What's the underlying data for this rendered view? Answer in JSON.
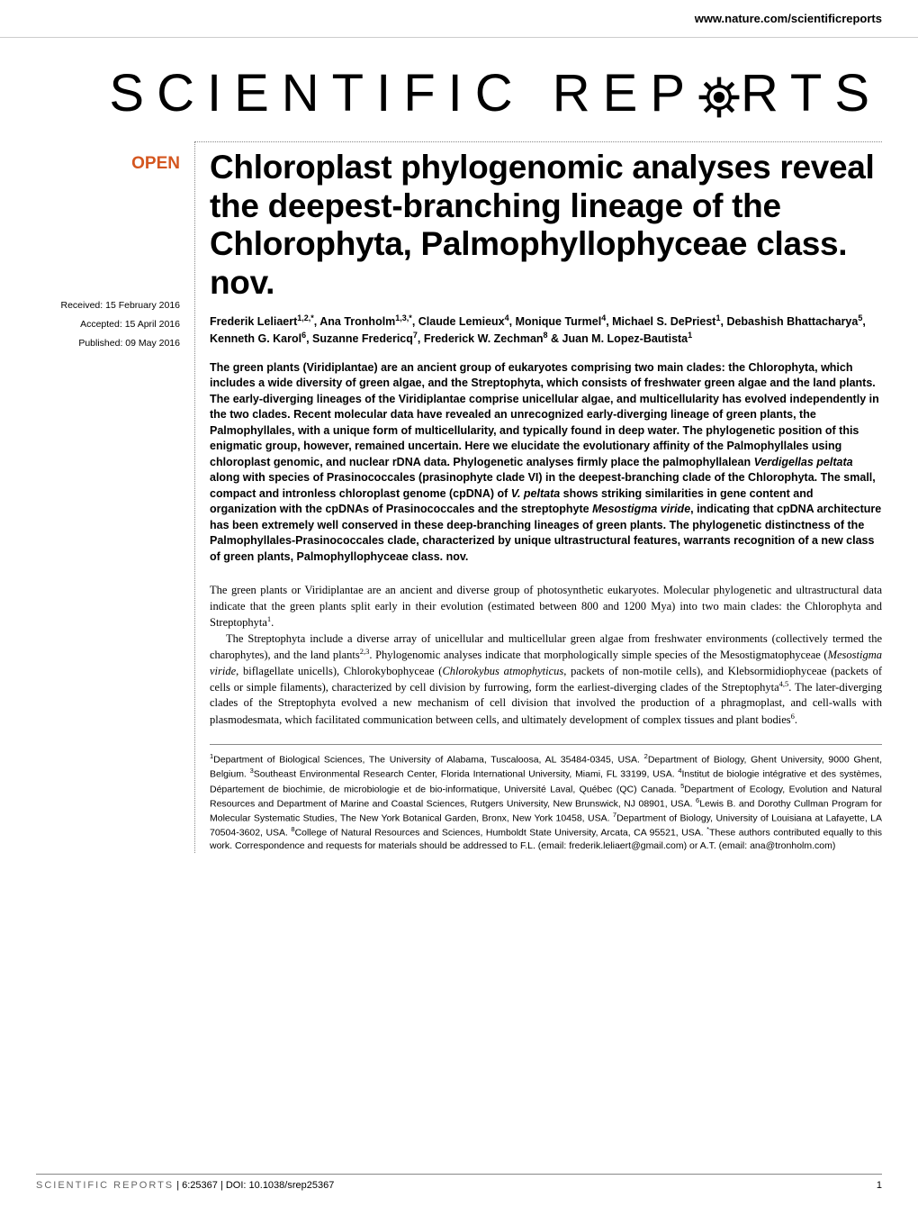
{
  "header": {
    "url": "www.nature.com/scientificreports"
  },
  "logo": {
    "text_before": "SCIENTIFIC",
    "text_after_o": "REP",
    "text_after_gear": "RTS"
  },
  "sidebar": {
    "open_label": "OPEN",
    "received": "Received: 15 February 2016",
    "accepted": "Accepted: 15 April 2016",
    "published": "Published: 09 May 2016"
  },
  "article": {
    "title": "Chloroplast phylogenomic analyses reveal the deepest-branching lineage of the Chlorophyta, Palmophyllophyceae class. nov.",
    "authors_html": "Frederik Leliaert<sup>1,2,*</sup>, Ana Tronholm<sup>1,3,*</sup>, Claude Lemieux<sup>4</sup>, Monique Turmel<sup>4</sup>, Michael S. DePriest<sup>1</sup>, Debashish Bhattacharya<sup>5</sup>, Kenneth G. Karol<sup>6</sup>, Suzanne Fredericq<sup>7</sup>, Frederick W. Zechman<sup>8</sup> & Juan M. Lopez-Bautista<sup>1</sup>",
    "abstract_html": "The green plants (Viridiplantae) are an ancient group of eukaryotes comprising two main clades: the Chlorophyta, which includes a wide diversity of green algae, and the Streptophyta, which consists of freshwater green algae and the land plants. The early-diverging lineages of the Viridiplantae comprise unicellular algae, and multicellularity has evolved independently in the two clades. Recent molecular data have revealed an unrecognized early-diverging lineage of green plants, the Palmophyllales, with a unique form of multicellularity, and typically found in deep water. The phylogenetic position of this enigmatic group, however, remained uncertain. Here we elucidate the evolutionary affinity of the Palmophyllales using chloroplast genomic, and nuclear rDNA data. Phylogenetic analyses firmly place the palmophyllalean <em>Verdigellas peltata</em> along with species of Prasinococcales (prasinophyte clade VI) in the deepest-branching clade of the Chlorophyta. The small, compact and intronless chloroplast genome (cpDNA) of <em>V. peltata</em> shows striking similarities in gene content and organization with the cpDNAs of Prasinococcales and the streptophyte <em>Mesostigma viride</em>, indicating that cpDNA architecture has been extremely well conserved in these deep-branching lineages of green plants. The phylogenetic distinctness of the Palmophyllales-Prasinococcales clade, characterized by unique ultrastructural features, warrants recognition of a new class of green plants, Palmophyllophyceae class. nov.",
    "body_p1_html": "The green plants or Viridiplantae are an ancient and diverse group of photosynthetic eukaryotes. Molecular phylogenetic and ultrastructural data indicate that the green plants split early in their evolution (estimated between 800 and 1200 Mya) into two main clades: the Chlorophyta and Streptophyta<sup>1</sup>.",
    "body_p2_html": "The Streptophyta include a diverse array of unicellular and multicellular green algae from freshwater environments (collectively termed the charophytes), and the land plants<sup>2,3</sup>. Phylogenomic analyses indicate that morphologically simple species of the Mesostigmatophyceae (<em>Mesostigma viride</em>, biflagellate unicells), Chlorokybophyceae (<em>Chlorokybus atmophyticus</em>, packets of non-motile cells), and Klebsormidiophyceae (packets of cells or simple filaments), characterized by cell division by furrowing, form the earliest-diverging clades of the Streptophyta<sup>4,5</sup>. The later-diverging clades of the Streptophyta evolved a new mechanism of cell division that involved the production of a phragmoplast, and cell-walls with plasmodesmata, which facilitated communication between cells, and ultimately development of complex tissues and plant bodies<sup>6</sup>.",
    "affiliations_html": "<sup>1</sup>Department of Biological Sciences, The University of Alabama, Tuscaloosa, AL 35484-0345, USA. <sup>2</sup>Department of Biology, Ghent University, 9000 Ghent, Belgium. <sup>3</sup>Southeast Environmental Research Center, Florida International University, Miami, FL 33199, USA. <sup>4</sup>Institut de biologie intégrative et des systèmes, Département de biochimie, de microbiologie et de bio-informatique, Université Laval, Québec (QC) Canada. <sup>5</sup>Department of Ecology, Evolution and Natural Resources and Department of Marine and Coastal Sciences, Rutgers University, New Brunswick, NJ 08901, USA. <sup>6</sup>Lewis B. and Dorothy Cullman Program for Molecular Systematic Studies, The New York Botanical Garden, Bronx, New York 10458, USA. <sup>7</sup>Department of Biology, University of Louisiana at Lafayette, LA 70504-3602, USA. <sup>8</sup>College of Natural Resources and Sciences, Humboldt State University, Arcata, CA 95521, USA. <sup>*</sup>These authors contributed equally to this work. Correspondence and requests for materials should be addressed to F.L. (email: frederik.leliaert@gmail.com) or A.T. (email: ana@tronholm.com)"
  },
  "footer": {
    "journal": "SCIENTIFIC REPORTS",
    "citation": " | 6:25367 | DOI: 10.1038/srep25367",
    "page": "1"
  },
  "colors": {
    "accent": "#d4561f",
    "text": "#000000",
    "border": "#888888",
    "light_border": "#cccccc",
    "muted": "#666666"
  }
}
